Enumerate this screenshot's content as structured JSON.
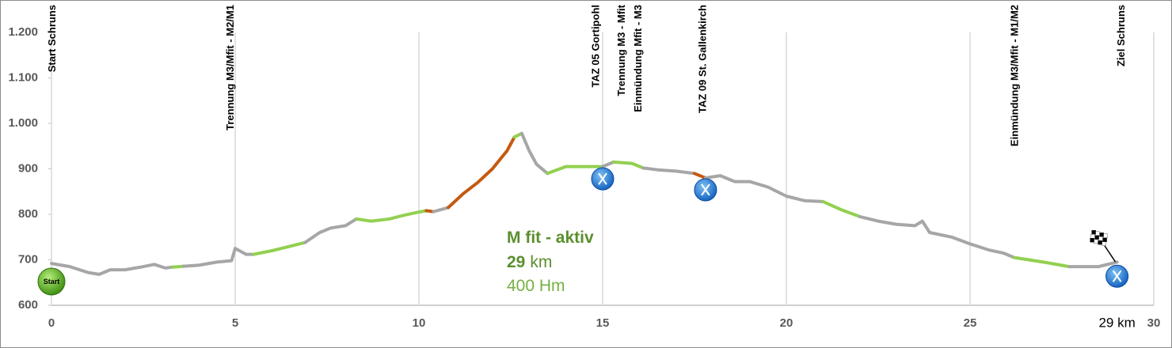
{
  "chart_data": {
    "type": "line",
    "ylim": [
      600,
      1200
    ],
    "yticks": [
      600,
      700,
      800,
      900,
      {
        "value": 1000,
        "label": "1.000"
      },
      {
        "value": 1100,
        "label": "1.100"
      },
      {
        "value": 1200,
        "label": "1.200"
      }
    ],
    "xlim": [
      0,
      30
    ],
    "xticks": [
      0,
      5,
      10,
      15,
      20,
      25,
      30
    ],
    "grid": "x",
    "series": [
      {
        "color": "#a6a6a6",
        "x": [
          0,
          0.5,
          1.0,
          1.3,
          1.6,
          2.0,
          2.5,
          2.8,
          3.1,
          3.3
        ],
        "values": [
          692,
          685,
          672,
          668,
          678,
          678,
          685,
          690,
          682,
          684
        ]
      },
      {
        "color": "#92d050",
        "x": [
          3.3,
          3.6
        ],
        "values": [
          684,
          686
        ]
      },
      {
        "color": "#a6a6a6",
        "x": [
          3.6,
          4.0,
          4.5,
          4.9,
          5.0,
          5.3,
          5.5
        ],
        "values": [
          686,
          688,
          695,
          698,
          725,
          712,
          712
        ]
      },
      {
        "color": "#92d050",
        "x": [
          5.5,
          6.0,
          6.5,
          6.9
        ],
        "values": [
          712,
          720,
          730,
          738
        ]
      },
      {
        "color": "#a6a6a6",
        "x": [
          6.9,
          7.3,
          7.6,
          8.0,
          8.3
        ],
        "values": [
          738,
          760,
          770,
          775,
          790
        ]
      },
      {
        "color": "#92d050",
        "x": [
          8.3,
          8.7,
          9.2,
          9.6,
          10.0,
          10.2
        ],
        "values": [
          790,
          785,
          790,
          798,
          805,
          808
        ]
      },
      {
        "color": "#c55a11",
        "x": [
          10.2,
          10.4
        ],
        "values": [
          808,
          806
        ]
      },
      {
        "color": "#a6a6a6",
        "x": [
          10.4,
          10.8
        ],
        "values": [
          806,
          815
        ]
      },
      {
        "color": "#c55a11",
        "x": [
          10.8,
          11.2,
          11.6,
          12.0,
          12.4,
          12.6
        ],
        "values": [
          815,
          845,
          870,
          900,
          940,
          970
        ]
      },
      {
        "color": "#92d050",
        "x": [
          12.6,
          12.8
        ],
        "values": [
          970,
          978
        ]
      },
      {
        "color": "#a6a6a6",
        "x": [
          12.8,
          13.0,
          13.2,
          13.5
        ],
        "values": [
          978,
          940,
          910,
          890
        ]
      },
      {
        "color": "#92d050",
        "x": [
          13.5,
          14.0,
          14.6,
          15.0
        ],
        "values": [
          890,
          905,
          905,
          905
        ]
      },
      {
        "color": "#a6a6a6",
        "x": [
          15.0,
          15.3
        ],
        "values": [
          905,
          915
        ]
      },
      {
        "color": "#92d050",
        "x": [
          15.3,
          15.8,
          16.1
        ],
        "values": [
          915,
          912,
          902
        ]
      },
      {
        "color": "#a6a6a6",
        "x": [
          16.1,
          16.5,
          17.0,
          17.5
        ],
        "values": [
          902,
          898,
          895,
          890
        ]
      },
      {
        "color": "#c55a11",
        "x": [
          17.5,
          17.8
        ],
        "values": [
          890,
          880
        ]
      },
      {
        "color": "#a6a6a6",
        "x": [
          17.8,
          18.2,
          18.6,
          19.0,
          19.5,
          20.0,
          20.5,
          21.0
        ],
        "values": [
          880,
          885,
          872,
          872,
          860,
          840,
          830,
          828
        ]
      },
      {
        "color": "#92d050",
        "x": [
          21.0,
          21.5,
          22.0
        ],
        "values": [
          828,
          810,
          795
        ]
      },
      {
        "color": "#a6a6a6",
        "x": [
          22.0,
          22.5,
          23.0,
          23.5,
          23.7,
          23.9,
          24.5,
          25.0,
          25.5,
          25.9,
          26.2
        ],
        "values": [
          795,
          785,
          778,
          775,
          785,
          760,
          750,
          735,
          722,
          715,
          705
        ]
      },
      {
        "color": "#92d050",
        "x": [
          26.2,
          27.0,
          27.7
        ],
        "values": [
          705,
          695,
          685
        ]
      },
      {
        "color": "#a6a6a6",
        "x": [
          27.7,
          28.5,
          29.0
        ],
        "values": [
          685,
          685,
          695
        ]
      }
    ],
    "waypoints": [
      {
        "text": "Start Schruns",
        "x": 0
      },
      {
        "text": "Trennung M3/Mfit - M2/M1",
        "x": 4.85
      },
      {
        "text": "TAZ 05 Gortipohl",
        "x": 14.8
      },
      {
        "text": "Trennung M3 - Mfit",
        "x": 15.5
      },
      {
        "text": "Einmündung Mfit - M3",
        "x": 15.95
      },
      {
        "text": "TAZ 09 St. Gallenkirch",
        "x": 17.7
      },
      {
        "text": "Einmündung M3/Mfit - M1/M2",
        "x": 26.2
      },
      {
        "text": "Ziel Schruns",
        "x": 29.1
      }
    ],
    "aid_stations": [
      {
        "x": 15.0,
        "y": 878
      },
      {
        "x": 17.8,
        "y": 854
      },
      {
        "x": 29.0,
        "y": 664
      }
    ],
    "start_label": "Start",
    "distance_label": {
      "text": "29 km",
      "x": 29
    },
    "info": {
      "title": "M fit - aktiv",
      "distance": "29",
      "distance_unit": "km",
      "ascent": "400 Hm"
    }
  }
}
